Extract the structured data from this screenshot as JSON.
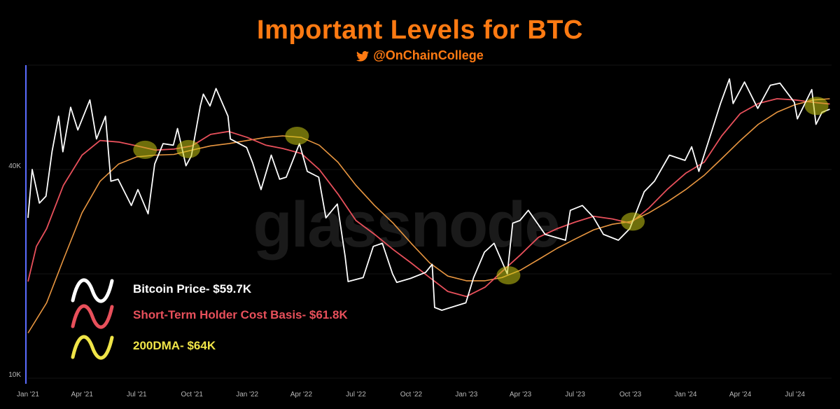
{
  "header": {
    "title": "Important Levels for BTC",
    "handle": "@OnChainCollege"
  },
  "watermark": "glassnode",
  "colors": {
    "title": "#ff7a12",
    "price": "#ffffff",
    "sth_cost_basis": "#e8505b",
    "dma200": "#e89640",
    "legend_200dma": "#f0e548",
    "highlight": "#c8c814",
    "axis_left": "#5b6cff"
  },
  "legend": [
    {
      "label": "Bitcoin Price- $59.7K",
      "color": "#ffffff"
    },
    {
      "label": "Short-Term Holder Cost Basis- $61.8K",
      "color": "#e8505b"
    },
    {
      "label": "200DMA- $64K",
      "color": "#f0e548"
    }
  ],
  "chart_data": {
    "type": "line",
    "title": "Important Levels for BTC",
    "y_scale": "log",
    "ylim": [
      10000,
      80000
    ],
    "x_range": [
      "2021-01-01",
      "2024-08-31"
    ],
    "grid": true,
    "x_ticks": [
      {
        "label": "Jan '21",
        "date": "2021-01-01"
      },
      {
        "label": "Apr '21",
        "date": "2021-04-01"
      },
      {
        "label": "Jul '21",
        "date": "2021-07-01"
      },
      {
        "label": "Oct '21",
        "date": "2021-10-01"
      },
      {
        "label": "Jan '22",
        "date": "2022-01-01"
      },
      {
        "label": "Apr '22",
        "date": "2022-04-01"
      },
      {
        "label": "Jul '22",
        "date": "2022-07-01"
      },
      {
        "label": "Oct '22",
        "date": "2022-10-01"
      },
      {
        "label": "Jan '23",
        "date": "2023-01-01"
      },
      {
        "label": "Apr '23",
        "date": "2023-04-01"
      },
      {
        "label": "Jul '23",
        "date": "2023-07-01"
      },
      {
        "label": "Oct '23",
        "date": "2023-10-01"
      },
      {
        "label": "Jan '24",
        "date": "2024-01-01"
      },
      {
        "label": "Apr '24",
        "date": "2024-04-01"
      },
      {
        "label": "Jul '24",
        "date": "2024-07-01"
      }
    ],
    "y_ticks": [
      {
        "label": "10K",
        "value": 10000
      },
      {
        "label": "40K",
        "value": 40000
      }
    ],
    "series": [
      {
        "name": "Bitcoin Price- $59.7K",
        "color": "#ffffff",
        "points": [
          [
            "2021-01-01",
            29000
          ],
          [
            "2021-01-08",
            40000
          ],
          [
            "2021-01-20",
            32000
          ],
          [
            "2021-01-31",
            33500
          ],
          [
            "2021-02-10",
            45000
          ],
          [
            "2021-02-21",
            57000
          ],
          [
            "2021-02-28",
            45000
          ],
          [
            "2021-03-13",
            60500
          ],
          [
            "2021-03-25",
            52000
          ],
          [
            "2021-04-14",
            63500
          ],
          [
            "2021-04-25",
            49000
          ],
          [
            "2021-05-10",
            57000
          ],
          [
            "2021-05-19",
            37000
          ],
          [
            "2021-05-31",
            37500
          ],
          [
            "2021-06-22",
            31500
          ],
          [
            "2021-07-03",
            35000
          ],
          [
            "2021-07-20",
            29800
          ],
          [
            "2021-07-31",
            41500
          ],
          [
            "2021-08-14",
            47500
          ],
          [
            "2021-08-31",
            47000
          ],
          [
            "2021-09-07",
            52500
          ],
          [
            "2021-09-21",
            41000
          ],
          [
            "2021-09-30",
            43800
          ],
          [
            "2021-10-15",
            61000
          ],
          [
            "2021-10-20",
            66000
          ],
          [
            "2021-10-31",
            61000
          ],
          [
            "2021-11-10",
            68500
          ],
          [
            "2021-11-30",
            57000
          ],
          [
            "2021-12-04",
            49000
          ],
          [
            "2021-12-31",
            46300
          ],
          [
            "2022-01-10",
            41800
          ],
          [
            "2022-01-24",
            35000
          ],
          [
            "2022-02-10",
            44000
          ],
          [
            "2022-02-24",
            37500
          ],
          [
            "2022-03-07",
            38000
          ],
          [
            "2022-03-29",
            47500
          ],
          [
            "2022-04-11",
            39500
          ],
          [
            "2022-04-30",
            38000
          ],
          [
            "2022-05-12",
            29000
          ],
          [
            "2022-05-31",
            31800
          ],
          [
            "2022-06-13",
            22500
          ],
          [
            "2022-06-18",
            19000
          ],
          [
            "2022-07-13",
            19500
          ],
          [
            "2022-07-30",
            24000
          ],
          [
            "2022-08-14",
            24500
          ],
          [
            "2022-08-31",
            20000
          ],
          [
            "2022-09-07",
            18900
          ],
          [
            "2022-09-30",
            19400
          ],
          [
            "2022-10-25",
            20200
          ],
          [
            "2022-11-05",
            21300
          ],
          [
            "2022-11-09",
            16000
          ],
          [
            "2022-11-21",
            15700
          ],
          [
            "2022-12-31",
            16500
          ],
          [
            "2023-01-13",
            19500
          ],
          [
            "2023-01-31",
            23100
          ],
          [
            "2023-02-16",
            24500
          ],
          [
            "2023-03-10",
            20000
          ],
          [
            "2023-03-19",
            28000
          ],
          [
            "2023-03-31",
            28500
          ],
          [
            "2023-04-14",
            30500
          ],
          [
            "2023-05-12",
            26000
          ],
          [
            "2023-06-15",
            25000
          ],
          [
            "2023-06-23",
            30500
          ],
          [
            "2023-07-13",
            31500
          ],
          [
            "2023-07-31",
            29200
          ],
          [
            "2023-08-17",
            26000
          ],
          [
            "2023-09-11",
            25000
          ],
          [
            "2023-09-30",
            27000
          ],
          [
            "2023-10-24",
            34500
          ],
          [
            "2023-11-10",
            37000
          ],
          [
            "2023-12-05",
            44000
          ],
          [
            "2023-12-31",
            42500
          ],
          [
            "2024-01-11",
            46500
          ],
          [
            "2024-01-23",
            39500
          ],
          [
            "2024-02-14",
            52000
          ],
          [
            "2024-02-28",
            62000
          ],
          [
            "2024-03-14",
            73000
          ],
          [
            "2024-03-20",
            62000
          ],
          [
            "2024-04-08",
            71500
          ],
          [
            "2024-04-30",
            60000
          ],
          [
            "2024-05-21",
            70000
          ],
          [
            "2024-06-06",
            71000
          ],
          [
            "2024-06-30",
            62500
          ],
          [
            "2024-07-05",
            56000
          ],
          [
            "2024-07-29",
            68000
          ],
          [
            "2024-08-05",
            54000
          ],
          [
            "2024-08-15",
            58500
          ],
          [
            "2024-08-28",
            59700
          ]
        ]
      },
      {
        "name": "Short-Term Holder Cost Basis- $61.8K",
        "color": "#e8505b",
        "points": [
          [
            "2021-01-01",
            19000
          ],
          [
            "2021-01-15",
            24000
          ],
          [
            "2021-02-01",
            27000
          ],
          [
            "2021-03-01",
            36000
          ],
          [
            "2021-04-01",
            44000
          ],
          [
            "2021-05-01",
            48500
          ],
          [
            "2021-06-01",
            48000
          ],
          [
            "2021-07-01",
            46800
          ],
          [
            "2021-08-01",
            45500
          ],
          [
            "2021-09-01",
            45800
          ],
          [
            "2021-10-01",
            46800
          ],
          [
            "2021-11-01",
            50500
          ],
          [
            "2021-12-01",
            51500
          ],
          [
            "2022-01-01",
            49500
          ],
          [
            "2022-02-01",
            47000
          ],
          [
            "2022-03-01",
            46000
          ],
          [
            "2022-04-01",
            44500
          ],
          [
            "2022-05-01",
            40000
          ],
          [
            "2022-06-01",
            34000
          ],
          [
            "2022-07-01",
            28500
          ],
          [
            "2022-08-01",
            26000
          ],
          [
            "2022-09-01",
            23500
          ],
          [
            "2022-10-01",
            21500
          ],
          [
            "2022-11-01",
            19500
          ],
          [
            "2022-12-01",
            17800
          ],
          [
            "2023-01-01",
            17200
          ],
          [
            "2023-02-01",
            18300
          ],
          [
            "2023-03-01",
            20300
          ],
          [
            "2023-04-01",
            22700
          ],
          [
            "2023-05-01",
            25500
          ],
          [
            "2023-06-01",
            27000
          ],
          [
            "2023-07-01",
            28200
          ],
          [
            "2023-08-01",
            29300
          ],
          [
            "2023-09-01",
            28800
          ],
          [
            "2023-10-01",
            28000
          ],
          [
            "2023-11-01",
            31000
          ],
          [
            "2023-12-01",
            35000
          ],
          [
            "2024-01-01",
            39000
          ],
          [
            "2024-02-01",
            42000
          ],
          [
            "2024-03-01",
            50000
          ],
          [
            "2024-04-01",
            58000
          ],
          [
            "2024-05-01",
            62000
          ],
          [
            "2024-06-01",
            64000
          ],
          [
            "2024-07-01",
            63500
          ],
          [
            "2024-08-01",
            62500
          ],
          [
            "2024-08-28",
            61800
          ]
        ]
      },
      {
        "name": "200DMA- $64K",
        "color": "#e89640",
        "points": [
          [
            "2021-01-01",
            13500
          ],
          [
            "2021-02-01",
            16500
          ],
          [
            "2021-03-01",
            22000
          ],
          [
            "2021-04-01",
            30000
          ],
          [
            "2021-05-01",
            37000
          ],
          [
            "2021-06-01",
            41500
          ],
          [
            "2021-07-01",
            43500
          ],
          [
            "2021-08-01",
            44000
          ],
          [
            "2021-09-01",
            44200
          ],
          [
            "2021-10-01",
            45500
          ],
          [
            "2021-11-01",
            46800
          ],
          [
            "2021-12-01",
            47500
          ],
          [
            "2022-01-01",
            48500
          ],
          [
            "2022-02-01",
            49500
          ],
          [
            "2022-03-01",
            50000
          ],
          [
            "2022-04-01",
            49500
          ],
          [
            "2022-05-01",
            47000
          ],
          [
            "2022-06-01",
            42000
          ],
          [
            "2022-07-01",
            36000
          ],
          [
            "2022-08-01",
            31500
          ],
          [
            "2022-09-01",
            28000
          ],
          [
            "2022-10-01",
            24500
          ],
          [
            "2022-11-01",
            21500
          ],
          [
            "2022-12-01",
            19700
          ],
          [
            "2023-01-01",
            19100
          ],
          [
            "2023-02-01",
            19100
          ],
          [
            "2023-03-01",
            19500
          ],
          [
            "2023-04-01",
            20500
          ],
          [
            "2023-05-01",
            22000
          ],
          [
            "2023-06-01",
            23700
          ],
          [
            "2023-07-01",
            25200
          ],
          [
            "2023-08-01",
            26800
          ],
          [
            "2023-09-01",
            27800
          ],
          [
            "2023-10-01",
            28300
          ],
          [
            "2023-11-01",
            30000
          ],
          [
            "2023-12-01",
            32200
          ],
          [
            "2024-01-01",
            35000
          ],
          [
            "2024-02-01",
            38500
          ],
          [
            "2024-03-01",
            43000
          ],
          [
            "2024-04-01",
            48500
          ],
          [
            "2024-05-01",
            54000
          ],
          [
            "2024-06-01",
            58500
          ],
          [
            "2024-07-01",
            61500
          ],
          [
            "2024-08-01",
            63500
          ],
          [
            "2024-08-28",
            64000
          ]
        ]
      }
    ],
    "highlights": [
      {
        "date": "2021-07-15",
        "value": 45600
      },
      {
        "date": "2021-09-25",
        "value": 45800
      },
      {
        "date": "2022-03-25",
        "value": 50000
      },
      {
        "date": "2023-03-12",
        "value": 19800
      },
      {
        "date": "2023-10-05",
        "value": 28300
      },
      {
        "date": "2024-08-06",
        "value": 61000
      }
    ]
  }
}
